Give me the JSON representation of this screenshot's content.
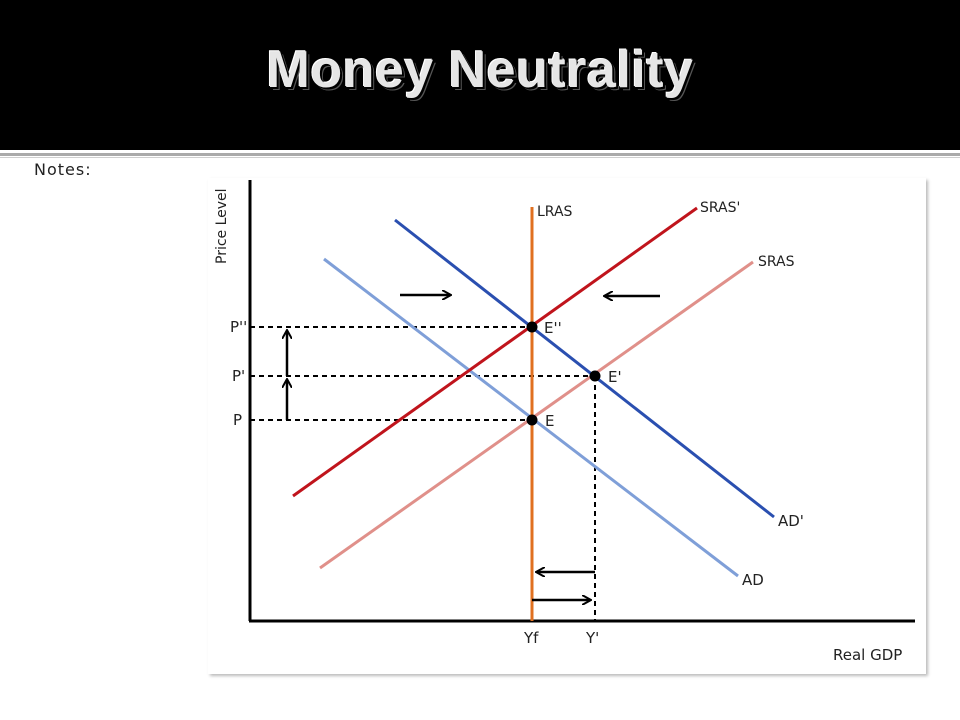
{
  "slide": {
    "title": "Money Neutrality",
    "notes_label": "Notes:"
  },
  "chart": {
    "y_axis_label": "Price Level",
    "x_axis_label": "Real GDP",
    "curves": {
      "lras": "LRAS",
      "sras": "SRAS",
      "sras_prime": "SRAS'",
      "ad": "AD",
      "ad_prime": "AD'"
    },
    "points": {
      "e": "E",
      "e_prime": "E'",
      "e_double_prime": "E''"
    },
    "price_levels": {
      "p": "P",
      "p_prime": "P'",
      "p_double_prime": "P''"
    },
    "outputs": {
      "yf": "Yf",
      "y_prime": "Y'"
    },
    "colors": {
      "lras": "#e07020",
      "sras": "#e0908a",
      "sras_prime": "#c0141c",
      "ad": "#7f9fd8",
      "ad_prime": "#2a4fb0",
      "arrows": "#000000"
    }
  }
}
